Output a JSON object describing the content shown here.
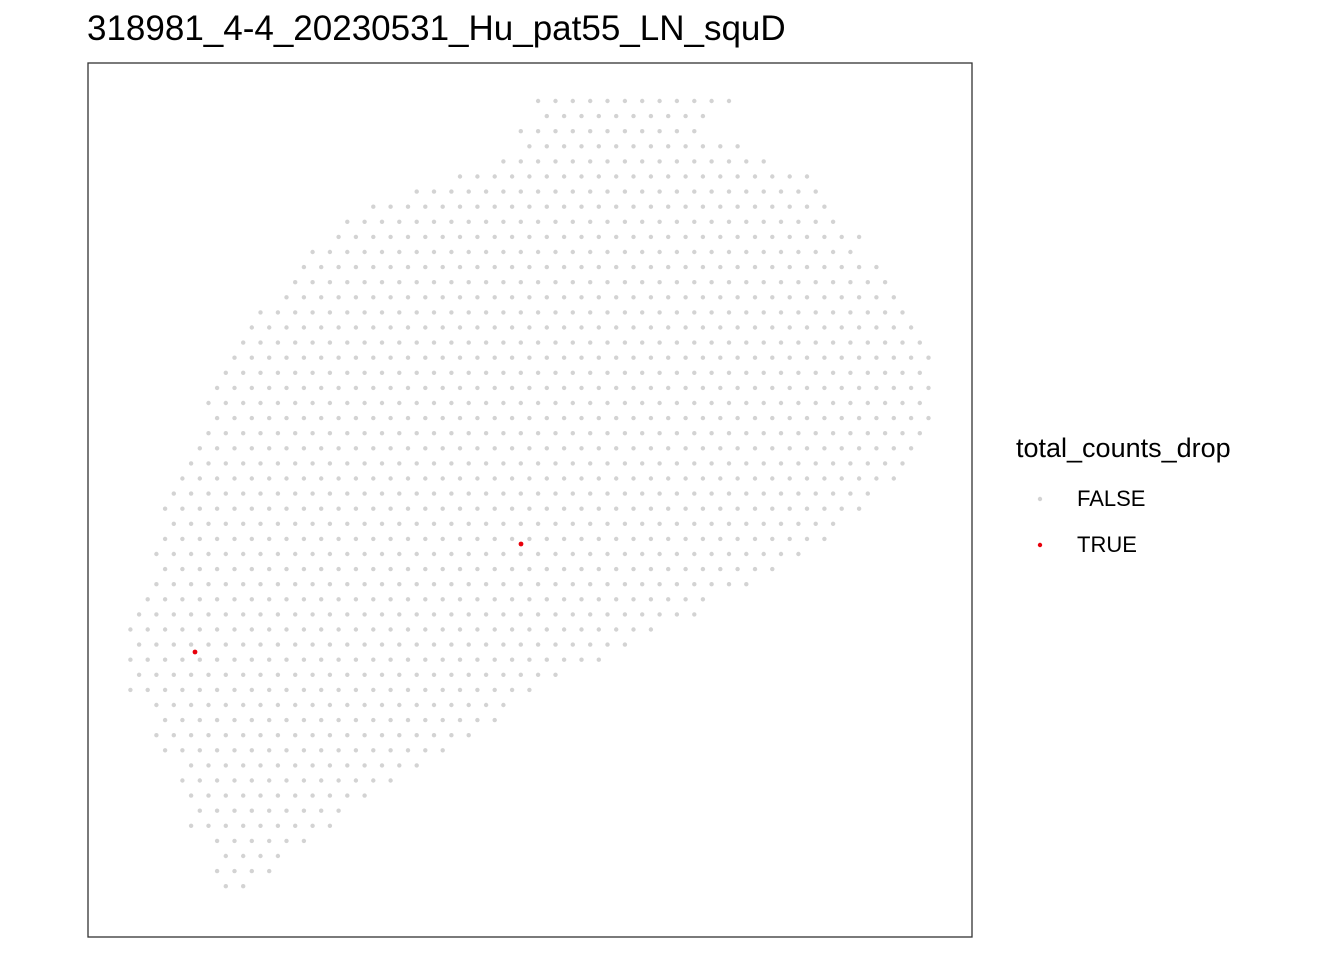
{
  "chart_data": {
    "type": "scatter",
    "title": "318981_4-4_20230531_Hu_pat55_LN_squD",
    "xlabel": "",
    "ylabel": "",
    "grid": false,
    "legend": {
      "title": "total_counts_drop",
      "placement": "right",
      "entries": [
        {
          "label": "FALSE",
          "color": "#d3d3d3"
        },
        {
          "label": "TRUE",
          "color": "#e8000b"
        }
      ]
    },
    "spot_grid": {
      "row_start_y": 101,
      "row_step": 15.1,
      "col_step": 17.35,
      "x_origin": 87,
      "rows": [
        [
          530,
          730
        ],
        [
          530,
          710
        ],
        [
          515,
          710
        ],
        [
          515,
          745
        ],
        [
          490,
          775
        ],
        [
          450,
          810
        ],
        [
          400,
          830
        ],
        [
          365,
          830
        ],
        [
          345,
          850
        ],
        [
          330,
          865
        ],
        [
          310,
          865
        ],
        [
          290,
          880
        ],
        [
          280,
          900
        ],
        [
          275,
          900
        ],
        [
          260,
          915
        ],
        [
          245,
          915
        ],
        [
          240,
          930
        ],
        [
          230,
          930
        ],
        [
          225,
          935
        ],
        [
          215,
          935
        ],
        [
          205,
          935
        ],
        [
          200,
          935
        ],
        [
          195,
          920
        ],
        [
          185,
          915
        ],
        [
          180,
          905
        ],
        [
          175,
          900
        ],
        [
          170,
          885
        ],
        [
          165,
          870
        ],
        [
          160,
          850
        ],
        [
          160,
          830
        ],
        [
          155,
          810
        ],
        [
          150,
          780
        ],
        [
          140,
          750
        ],
        [
          140,
          720
        ],
        [
          130,
          695
        ],
        [
          125,
          665
        ],
        [
          125,
          635
        ],
        [
          125,
          600
        ],
        [
          125,
          570
        ],
        [
          130,
          545
        ],
        [
          140,
          520
        ],
        [
          150,
          500
        ],
        [
          155,
          470
        ],
        [
          160,
          450
        ],
        [
          175,
          420
        ],
        [
          180,
          395
        ],
        [
          180,
          370
        ],
        [
          185,
          345
        ],
        [
          190,
          330
        ],
        [
          200,
          310
        ],
        [
          210,
          290
        ],
        [
          215,
          270
        ],
        [
          225,
          250
        ]
      ]
    },
    "highlighted_spots": [
      {
        "x": 521,
        "y": 544
      },
      {
        "x": 195,
        "y": 652
      }
    ]
  }
}
